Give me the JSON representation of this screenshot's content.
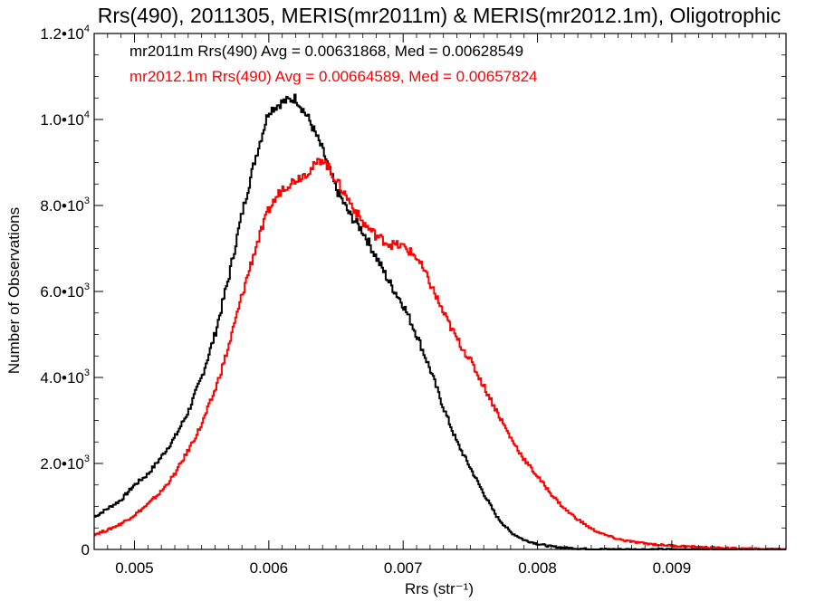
{
  "chart_data": {
    "type": "line",
    "title": "Rrs(490), 2011305, MERIS(mr2011m) & MERIS(mr2012.1m), Oligotrophic",
    "xlabel": "Rrs (str⁻¹)",
    "ylabel": "Number of Observations",
    "xlim": [
      0.0047,
      0.00985
    ],
    "ylim": [
      0,
      12000
    ],
    "x_ticks": [
      {
        "value": 0.005,
        "label": "0.005"
      },
      {
        "value": 0.006,
        "label": "0.006"
      },
      {
        "value": 0.007,
        "label": "0.007"
      },
      {
        "value": 0.008,
        "label": "0.008"
      },
      {
        "value": 0.009,
        "label": "0.009"
      }
    ],
    "y_ticks": [
      {
        "value": 0,
        "mant": "0",
        "exp": ""
      },
      {
        "value": 2000,
        "mant": "2.0•10",
        "exp": "3"
      },
      {
        "value": 4000,
        "mant": "4.0•10",
        "exp": "3"
      },
      {
        "value": 6000,
        "mant": "6.0•10",
        "exp": "3"
      },
      {
        "value": 8000,
        "mant": "8.0•10",
        "exp": "3"
      },
      {
        "value": 10000,
        "mant": "1.0•10",
        "exp": "4"
      },
      {
        "value": 12000,
        "mant": "1.2•10",
        "exp": "4"
      }
    ],
    "annotations": [
      "mr2011m Rrs(490) Avg = 0.00631868, Med = 0.00628549",
      "mr2012.1m Rrs(490) Avg = 0.00664589, Med = 0.00657824"
    ],
    "series": [
      {
        "name": "mr2011m",
        "color": "#000000",
        "points": [
          [
            0.0047,
            750
          ],
          [
            0.0048,
            950
          ],
          [
            0.0049,
            1150
          ],
          [
            0.005,
            1500
          ],
          [
            0.0051,
            1750
          ],
          [
            0.0052,
            2150
          ],
          [
            0.0053,
            2600
          ],
          [
            0.0054,
            3200
          ],
          [
            0.0055,
            4000
          ],
          [
            0.0056,
            5000
          ],
          [
            0.0057,
            6300
          ],
          [
            0.0058,
            7800
          ],
          [
            0.0059,
            9100
          ],
          [
            0.006,
            10200
          ],
          [
            0.0061,
            10400
          ],
          [
            0.0062,
            10500
          ],
          [
            0.0063,
            10000
          ],
          [
            0.0064,
            9300
          ],
          [
            0.0065,
            8400
          ],
          [
            0.0066,
            7800
          ],
          [
            0.0067,
            7400
          ],
          [
            0.0068,
            6800
          ],
          [
            0.0069,
            6200
          ],
          [
            0.007,
            5700
          ],
          [
            0.0071,
            5000
          ],
          [
            0.0072,
            4200
          ],
          [
            0.0073,
            3300
          ],
          [
            0.0074,
            2500
          ],
          [
            0.0075,
            1900
          ],
          [
            0.0076,
            1300
          ],
          [
            0.0077,
            750
          ],
          [
            0.0078,
            400
          ],
          [
            0.0079,
            220
          ],
          [
            0.008,
            130
          ],
          [
            0.0081,
            70
          ],
          [
            0.0082,
            40
          ],
          [
            0.0083,
            20
          ],
          [
            0.0084,
            10
          ],
          [
            0.0085,
            5
          ],
          [
            0.0086,
            2
          ],
          [
            0.009,
            0
          ],
          [
            0.00985,
            0
          ]
        ]
      },
      {
        "name": "mr2012.1m",
        "color": "#ff0000",
        "points": [
          [
            0.0047,
            350
          ],
          [
            0.0048,
            450
          ],
          [
            0.0049,
            600
          ],
          [
            0.005,
            800
          ],
          [
            0.0051,
            1050
          ],
          [
            0.0052,
            1350
          ],
          [
            0.0053,
            1750
          ],
          [
            0.0054,
            2300
          ],
          [
            0.0055,
            2900
          ],
          [
            0.0056,
            3700
          ],
          [
            0.0057,
            4700
          ],
          [
            0.0058,
            5900
          ],
          [
            0.0059,
            7000
          ],
          [
            0.006,
            7900
          ],
          [
            0.0061,
            8400
          ],
          [
            0.0062,
            8600
          ],
          [
            0.0063,
            8800
          ],
          [
            0.0064,
            9100
          ],
          [
            0.0065,
            8600
          ],
          [
            0.0066,
            8100
          ],
          [
            0.0067,
            7600
          ],
          [
            0.0068,
            7300
          ],
          [
            0.0069,
            7100
          ],
          [
            0.007,
            7050
          ],
          [
            0.0071,
            6800
          ],
          [
            0.0072,
            6200
          ],
          [
            0.0073,
            5500
          ],
          [
            0.0074,
            4900
          ],
          [
            0.0075,
            4400
          ],
          [
            0.0076,
            3800
          ],
          [
            0.0077,
            3200
          ],
          [
            0.0078,
            2600
          ],
          [
            0.0079,
            2100
          ],
          [
            0.008,
            1700
          ],
          [
            0.0081,
            1300
          ],
          [
            0.0082,
            950
          ],
          [
            0.0083,
            700
          ],
          [
            0.0084,
            480
          ],
          [
            0.0085,
            340
          ],
          [
            0.0086,
            240
          ],
          [
            0.0087,
            180
          ],
          [
            0.0088,
            140
          ],
          [
            0.0089,
            110
          ],
          [
            0.009,
            90
          ],
          [
            0.0091,
            70
          ],
          [
            0.0092,
            55
          ],
          [
            0.0093,
            40
          ],
          [
            0.0094,
            30
          ],
          [
            0.0095,
            22
          ],
          [
            0.0096,
            15
          ],
          [
            0.0097,
            8
          ],
          [
            0.00985,
            2
          ]
        ]
      }
    ]
  }
}
